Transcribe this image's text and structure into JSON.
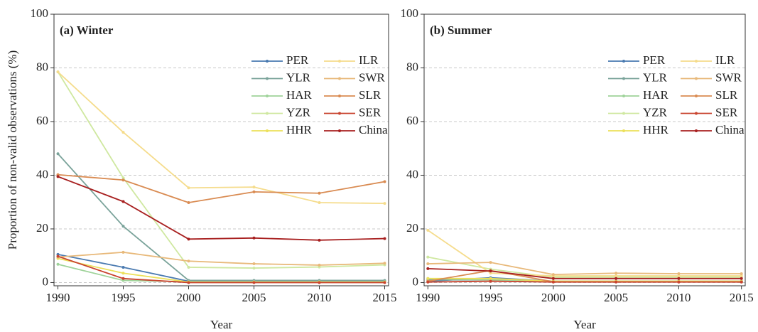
{
  "chart_data": [
    {
      "type": "line",
      "title": "(a) Winter",
      "xlabel": "Year",
      "ylabel": "Proportion of non-valid observations (%)",
      "x": [
        1990,
        1995,
        2000,
        2005,
        2010,
        2015
      ],
      "xlim": [
        1989.7,
        2015.3
      ],
      "xticks": [
        1990,
        1995,
        2000,
        2005,
        2010,
        2015
      ],
      "ylim": [
        -1.2,
        100
      ],
      "yticks": [
        0,
        20,
        40,
        60,
        80,
        100
      ],
      "grid": true,
      "legend": "upper right",
      "series": [
        {
          "name": "PER",
          "color": "#4a7ab0",
          "values": [
            10.5,
            5.7,
            0.5,
            0.5,
            0.5,
            0.5
          ]
        },
        {
          "name": "YLR",
          "color": "#7aa39a",
          "values": [
            48,
            21,
            0.8,
            0.8,
            0.8,
            0.8
          ]
        },
        {
          "name": "HAR",
          "color": "#9fd39a",
          "values": [
            6.8,
            0.8,
            0.3,
            0.3,
            0.3,
            0.3
          ]
        },
        {
          "name": "YZR",
          "color": "#cfe8a0",
          "values": [
            78.5,
            39,
            5.7,
            5.4,
            5.8,
            6.6
          ]
        },
        {
          "name": "HHR",
          "color": "#ece05a",
          "values": [
            9,
            3.5,
            0.2,
            0.2,
            0.2,
            0.2
          ]
        },
        {
          "name": "ILR",
          "color": "#f5dc8c",
          "values": [
            78.5,
            56,
            35.3,
            35.6,
            29.8,
            29.5
          ]
        },
        {
          "name": "SWR",
          "color": "#e8b97a",
          "values": [
            9.5,
            11.3,
            8,
            7,
            6.5,
            7.2
          ]
        },
        {
          "name": "SLR",
          "color": "#d98b52",
          "values": [
            40.2,
            38.2,
            29.8,
            33.8,
            33.3,
            37.6
          ]
        },
        {
          "name": "SER",
          "color": "#c9442f",
          "values": [
            9.8,
            1.5,
            0,
            0,
            0,
            0
          ]
        },
        {
          "name": "China",
          "color": "#a82020",
          "values": [
            39.5,
            30.2,
            16.2,
            16.6,
            15.8,
            16.4
          ]
        }
      ]
    },
    {
      "type": "line",
      "title": "(b) Summer",
      "xlabel": "Year",
      "x": [
        1990,
        1995,
        2000,
        2005,
        2010,
        2015
      ],
      "xlim": [
        1989.7,
        2015.3
      ],
      "xticks": [
        1990,
        1995,
        2000,
        2005,
        2010,
        2015
      ],
      "ylim": [
        -1.2,
        100
      ],
      "yticks": [
        0,
        20,
        40,
        60,
        80,
        100
      ],
      "grid": true,
      "legend": "upper right",
      "series": [
        {
          "name": "PER",
          "color": "#4a7ab0",
          "values": [
            0.5,
            1.8,
            0.5,
            0.5,
            0.5,
            0.5
          ]
        },
        {
          "name": "YLR",
          "color": "#7aa39a",
          "values": [
            1,
            1,
            0.5,
            0.5,
            0.5,
            0.5
          ]
        },
        {
          "name": "HAR",
          "color": "#9fd39a",
          "values": [
            1.5,
            1,
            0.3,
            0.3,
            0.3,
            0.3
          ]
        },
        {
          "name": "YZR",
          "color": "#cfe8a0",
          "values": [
            9.5,
            5,
            2,
            2,
            2,
            2
          ]
        },
        {
          "name": "HHR",
          "color": "#ece05a",
          "values": [
            1.5,
            1.5,
            0.5,
            0.5,
            0.5,
            0.5
          ]
        },
        {
          "name": "ILR",
          "color": "#f5dc8c",
          "values": [
            19.5,
            3.5,
            2.5,
            2.5,
            2.5,
            2.5
          ]
        },
        {
          "name": "SWR",
          "color": "#e8b97a",
          "values": [
            7,
            7.5,
            3,
            3.5,
            3.3,
            3.3
          ]
        },
        {
          "name": "SLR",
          "color": "#d98b52",
          "values": [
            0.5,
            4.5,
            0.3,
            0.3,
            0.3,
            0.3
          ]
        },
        {
          "name": "SER",
          "color": "#c9442f",
          "values": [
            0.2,
            0.5,
            0.2,
            0.2,
            0.2,
            0.2
          ]
        },
        {
          "name": "China",
          "color": "#a82020",
          "values": [
            5.2,
            4.3,
            1.5,
            1.5,
            1.5,
            1.5
          ]
        }
      ]
    }
  ]
}
